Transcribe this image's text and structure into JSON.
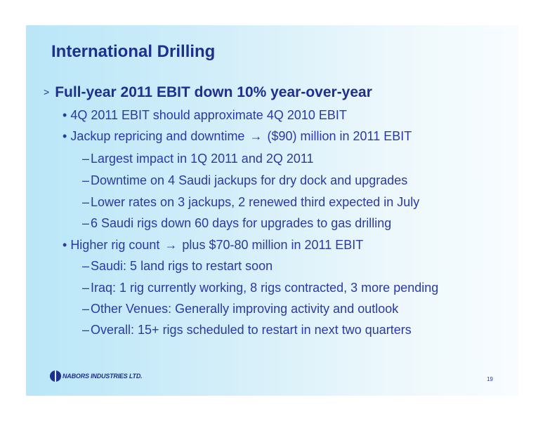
{
  "slide": {
    "title": "International Drilling",
    "page_number": "19",
    "logo_text": "NABORS INDUSTRIES LTD.",
    "heading_marker": ">",
    "heading": "Full-year 2011 EBIT down 10% year-over-year",
    "bullet_symbol": "•",
    "dash_symbol": "–",
    "arrow_symbol": "→",
    "bullets": [
      {
        "text": "4Q 2011 EBIT should approximate 4Q 2010 EBIT"
      },
      {
        "text_before_arrow": "Jackup repricing and downtime",
        "text_after_arrow": "($90) million in 2011 EBIT"
      },
      {
        "text": "Largest impact in 1Q 2011 and 2Q 2011"
      },
      {
        "text": "Downtime on 4 Saudi jackups for dry dock and upgrades"
      },
      {
        "text": "Lower rates on 3 jackups, 2 renewed third expected in July"
      },
      {
        "text": "6 Saudi rigs down 60 days for upgrades to gas drilling"
      },
      {
        "text_before_arrow": "Higher rig count",
        "text_after_arrow": "plus $70-80 million in 2011 EBIT"
      },
      {
        "text": "Saudi: 5 land rigs to restart soon"
      },
      {
        "text": "Iraq: 1 rig currently working, 8 rigs contracted, 3 more pending"
      },
      {
        "text": "Other Venues: Generally improving activity and outlook"
      },
      {
        "text": "Overall: 15+ rigs scheduled to restart in next two quarters"
      }
    ],
    "colors": {
      "title": "#1d2f8f",
      "body_text": "#2b39a3",
      "background_left": "#b9e6f8",
      "background_right": "#f8fcfe"
    }
  }
}
